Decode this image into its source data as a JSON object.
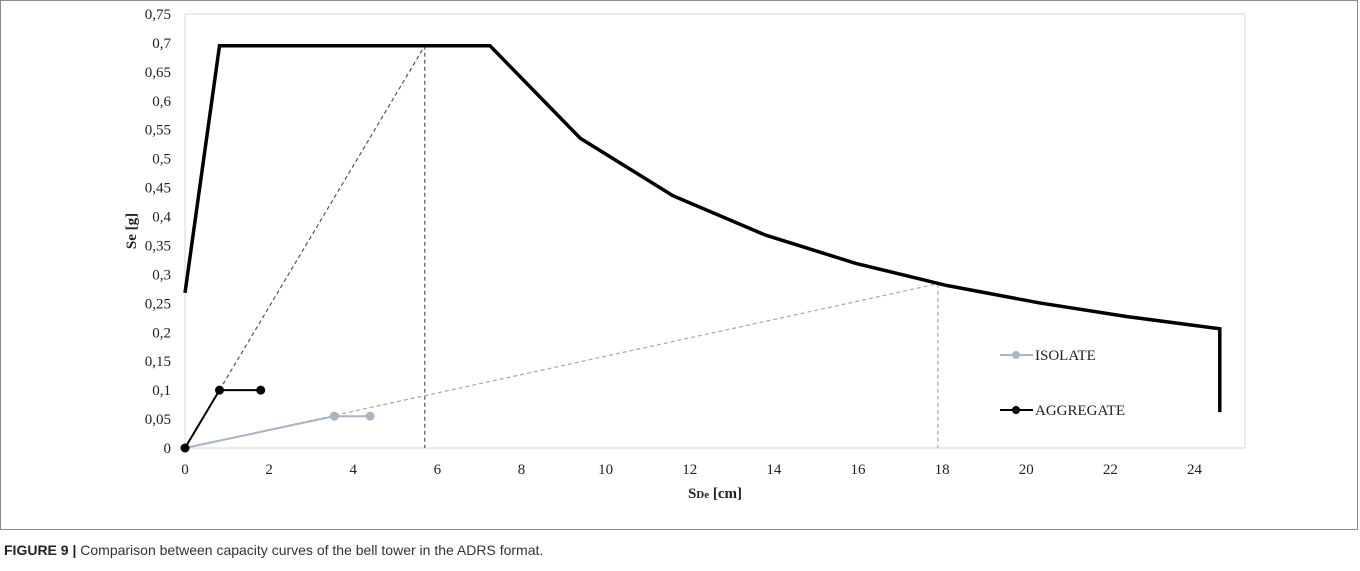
{
  "caption": {
    "figure_label": "FIGURE 9 |",
    "text": " Comparison between capacity curves of the bell tower in the ADRS format."
  },
  "chart_data": {
    "type": "line",
    "title": "",
    "xlabel": "SDe [cm]",
    "xlabel_main": "S",
    "xlabel_sub": "De",
    "xlabel_unit": " [cm]",
    "ylabel": "Se [g]",
    "xlim": [
      0,
      25.2
    ],
    "ylim": [
      0,
      0.75
    ],
    "x_ticks": [
      0,
      2,
      4,
      6,
      8,
      10,
      12,
      14,
      16,
      18,
      20,
      22,
      24
    ],
    "x_tick_labels": [
      "0",
      "2",
      "4",
      "6",
      "8",
      "10",
      "12",
      "14",
      "16",
      "18",
      "20",
      "22",
      "24"
    ],
    "y_ticks": [
      0,
      0.05,
      0.1,
      0.15,
      0.2,
      0.25,
      0.3,
      0.35,
      0.4,
      0.45,
      0.5,
      0.55,
      0.6,
      0.65,
      0.7,
      0.75
    ],
    "y_tick_labels": [
      "0",
      "0,05",
      "0,1",
      "0,15",
      "0,2",
      "0,25",
      "0,3",
      "0,35",
      "0,4",
      "0,45",
      "0,5",
      "0,55",
      "0,6",
      "0,65",
      "0,7",
      "0,75"
    ],
    "grid": false,
    "legend_position": "right",
    "series": [
      {
        "name": "ISOLATE",
        "color": "#a9b5c6",
        "markers": true,
        "x": [
          0,
          3.55,
          4.4
        ],
        "y": [
          0,
          0.055,
          0.055
        ]
      },
      {
        "name": "AGGREGATE",
        "color": "#000000",
        "markers": true,
        "x": [
          0,
          0.82,
          1.8
        ],
        "y": [
          0,
          0.1,
          0.1
        ]
      }
    ],
    "spectrum": {
      "name": "ADRS spectrum",
      "color": "#000000",
      "x": [
        0,
        0.82,
        7.25,
        9.4,
        11.6,
        13.8,
        15.95,
        18.1,
        20.3,
        22.4,
        24.6,
        24.6
      ],
      "y": [
        0.268,
        0.695,
        0.695,
        0.535,
        0.436,
        0.368,
        0.319,
        0.281,
        0.251,
        0.227,
        0.206,
        0.062
      ]
    },
    "guide_lines": [
      {
        "color": "#555555",
        "x": [
          0.82,
          5.7
        ],
        "y": [
          0.1,
          0.695
        ]
      },
      {
        "color": "#555555",
        "x": [
          5.7,
          5.7
        ],
        "y": [
          0.695,
          0
        ]
      },
      {
        "color": "#a6a6a6",
        "x": [
          0,
          17.9
        ],
        "y": [
          0,
          0.284
        ]
      },
      {
        "color": "#a6a6a6",
        "x": [
          17.9,
          17.9
        ],
        "y": [
          0.284,
          0
        ]
      }
    ],
    "legend": [
      {
        "label": "ISOLATE",
        "color": "#a9b5c6"
      },
      {
        "label": "AGGREGATE",
        "color": "#000000"
      }
    ]
  }
}
